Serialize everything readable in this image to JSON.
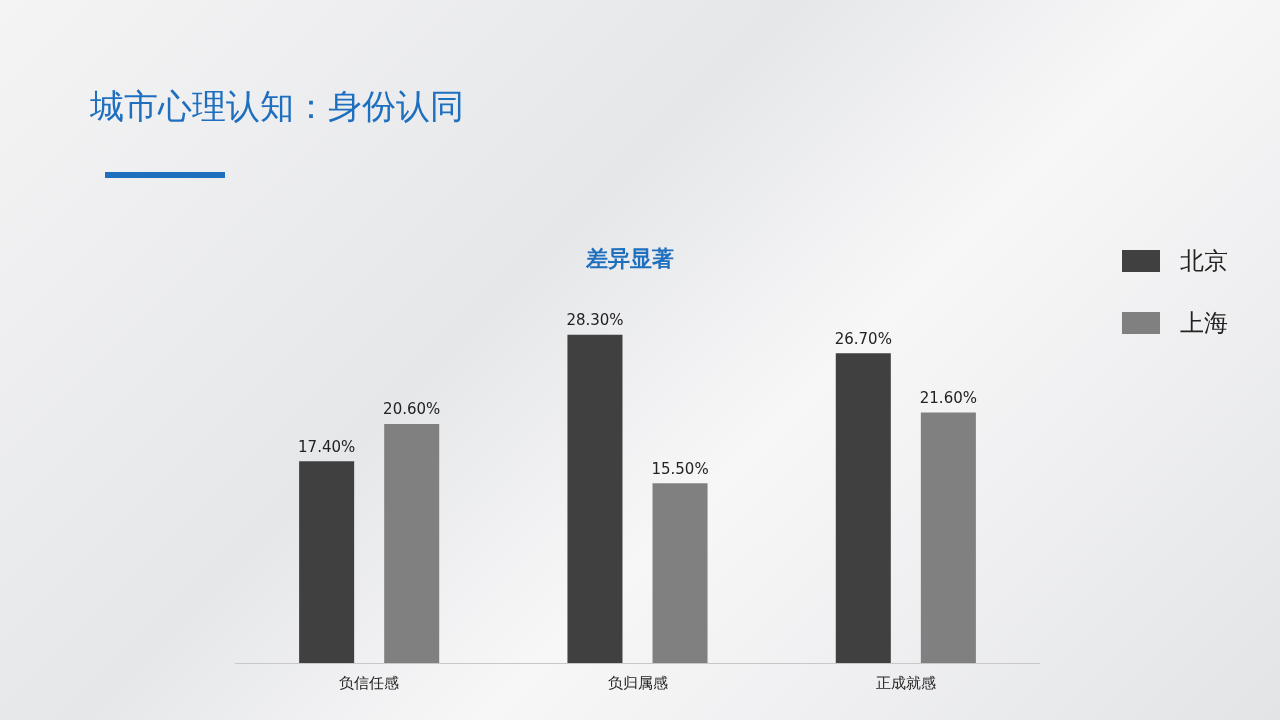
{
  "chart_data": {
    "type": "bar",
    "title": "城市心理认知：身份认同",
    "subtitle": "差异显著",
    "categories": [
      "负信任感",
      "负归属感",
      "正成就感"
    ],
    "series": [
      {
        "name": "北京",
        "color": "#404040",
        "values": [
          17.4,
          28.3,
          26.7
        ],
        "value_labels": [
          "17.40%",
          "28.30%",
          "26.70%"
        ]
      },
      {
        "name": "上海",
        "color": "#808080",
        "values": [
          20.6,
          15.5,
          21.6
        ],
        "value_labels": [
          "20.60%",
          "15.50%",
          "21.60%"
        ]
      }
    ],
    "grid": false,
    "legend": "top right"
  }
}
